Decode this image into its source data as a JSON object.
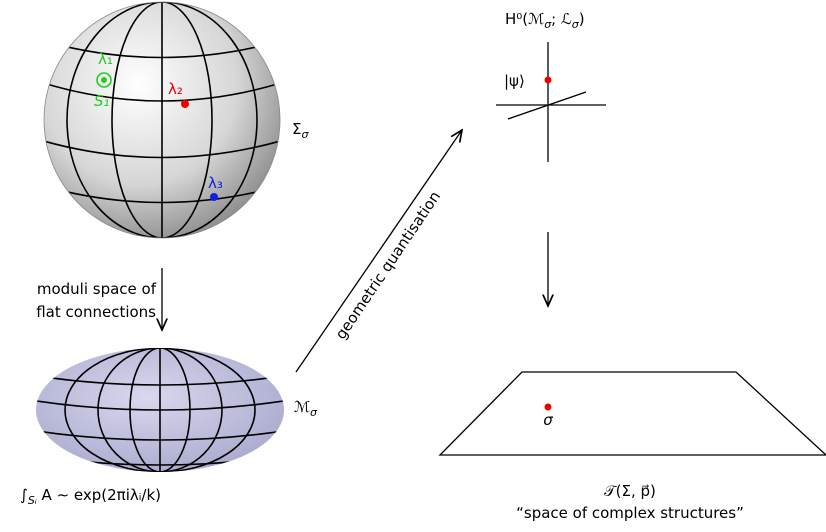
{
  "sphere": {
    "lambda1": "λ₁",
    "s1": "S₁",
    "lambda2": "λ₂",
    "lambda3": "λ₃",
    "label": {
      "base": "Σ",
      "sub": "σ"
    }
  },
  "moduli_arrow": {
    "lines": [
      "moduli space of",
      "flat connections"
    ]
  },
  "ellipsoid": {
    "label": {
      "base": "ℳ",
      "sub": "σ"
    },
    "formula": {
      "integral": "∫",
      "sub": "Sᵢ",
      "rest": " A ∼ exp(2πiλᵢ/k)"
    }
  },
  "quantisation_arrow": {
    "label": "geometric quantisation"
  },
  "hilbert": {
    "title_parts": [
      "H⁰(ℳ",
      "σ",
      "; ℒ",
      "σ",
      ")"
    ],
    "ket": "|ψ⟩"
  },
  "teichmuller": {
    "point": "σ",
    "title": "𝒯(Σ, p⃗)",
    "caption": "“space of complex structures”"
  }
}
